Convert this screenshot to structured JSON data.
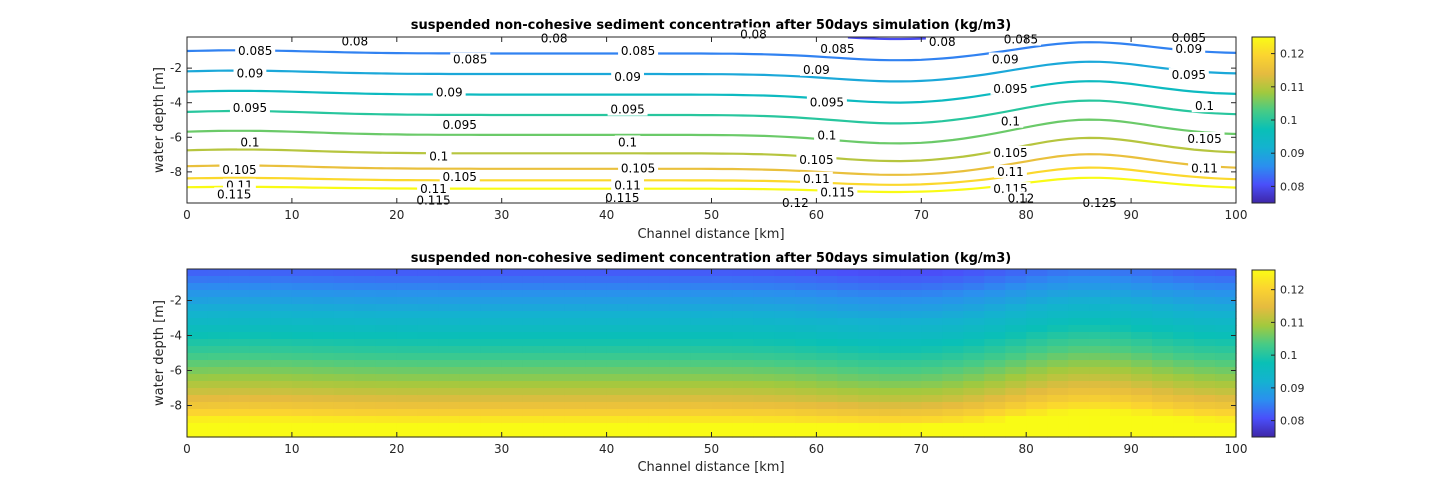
{
  "chart_data": [
    {
      "type": "contour",
      "title": "suspended non-cohesive sediment concentration after 50days simulation (kg/m3)",
      "xlabel": "Channel distance [km]",
      "ylabel": "water depth [m]",
      "xlim": [
        0,
        100
      ],
      "ylim": [
        -9.8,
        -0.2
      ],
      "xticks": [
        "0",
        "10",
        "20",
        "30",
        "40",
        "50",
        "60",
        "70",
        "80",
        "90",
        "100"
      ],
      "yticks": [
        "-2",
        "-4",
        "-6",
        "-8"
      ],
      "colorbar": {
        "min": 0.075,
        "max": 0.125,
        "ticks": [
          "0.08",
          "0.09",
          "0.1",
          "0.11",
          "0.12"
        ]
      },
      "colormap": [
        "#3e26a8",
        "#4a4ffa",
        "#2b8fef",
        "#14b2d0",
        "#09c0b6",
        "#47cb86",
        "#a2c93e",
        "#e5bb3f",
        "#fbd430",
        "#f9fb15"
      ],
      "contour_levels": [
        0.08,
        0.085,
        0.09,
        0.095,
        0.1,
        0.105,
        0.11,
        0.115,
        0.12,
        0.125
      ],
      "contour_labels": [
        {
          "x": 16,
          "y": -0.45,
          "text": "0.08"
        },
        {
          "x": 35,
          "y": -0.3,
          "text": "0.08"
        },
        {
          "x": 54,
          "y": -0.05,
          "text": "0.08"
        },
        {
          "x": 72,
          "y": -0.5,
          "text": "0.08"
        },
        {
          "x": 95.5,
          "y": -0.25,
          "text": "0.085"
        },
        {
          "x": 6.5,
          "y": -1.0,
          "text": "0.085"
        },
        {
          "x": 27,
          "y": -1.5,
          "text": "0.085"
        },
        {
          "x": 43,
          "y": -1.0,
          "text": "0.085"
        },
        {
          "x": 62,
          "y": -0.9,
          "text": "0.085"
        },
        {
          "x": 79.5,
          "y": -0.35,
          "text": "0.085"
        },
        {
          "x": 6,
          "y": -2.3,
          "text": "0.09"
        },
        {
          "x": 25,
          "y": -3.4,
          "text": "0.09"
        },
        {
          "x": 42,
          "y": -2.5,
          "text": "0.09"
        },
        {
          "x": 60,
          "y": -2.1,
          "text": "0.09"
        },
        {
          "x": 78,
          "y": -1.5,
          "text": "0.09"
        },
        {
          "x": 95.5,
          "y": -0.9,
          "text": "0.09"
        },
        {
          "x": 6,
          "y": -4.3,
          "text": "0.095"
        },
        {
          "x": 26,
          "y": -5.3,
          "text": "0.095"
        },
        {
          "x": 42,
          "y": -4.4,
          "text": "0.095"
        },
        {
          "x": 61,
          "y": -4.0,
          "text": "0.095"
        },
        {
          "x": 78.5,
          "y": -3.2,
          "text": "0.095"
        },
        {
          "x": 95.5,
          "y": -2.4,
          "text": "0.095"
        },
        {
          "x": 6,
          "y": -6.3,
          "text": "0.1"
        },
        {
          "x": 24,
          "y": -7.1,
          "text": "0.1"
        },
        {
          "x": 42,
          "y": -6.3,
          "text": "0.1"
        },
        {
          "x": 61,
          "y": -5.9,
          "text": "0.1"
        },
        {
          "x": 78.5,
          "y": -5.1,
          "text": "0.1"
        },
        {
          "x": 97,
          "y": -4.2,
          "text": "0.1"
        },
        {
          "x": 5,
          "y": -7.9,
          "text": "0.105"
        },
        {
          "x": 26,
          "y": -8.3,
          "text": "0.105"
        },
        {
          "x": 43,
          "y": -7.8,
          "text": "0.105"
        },
        {
          "x": 60,
          "y": -7.3,
          "text": "0.105"
        },
        {
          "x": 78.5,
          "y": -6.9,
          "text": "0.105"
        },
        {
          "x": 97,
          "y": -6.1,
          "text": "0.105"
        },
        {
          "x": 5,
          "y": -8.8,
          "text": "0.11"
        },
        {
          "x": 23.5,
          "y": -9.0,
          "text": "0.11"
        },
        {
          "x": 42,
          "y": -8.8,
          "text": "0.11"
        },
        {
          "x": 60,
          "y": -8.4,
          "text": "0.11"
        },
        {
          "x": 78.5,
          "y": -8.0,
          "text": "0.11"
        },
        {
          "x": 97,
          "y": -7.8,
          "text": "0.11"
        },
        {
          "x": 4.5,
          "y": -9.3,
          "text": "0.115"
        },
        {
          "x": 23.5,
          "y": -9.65,
          "text": "0.115"
        },
        {
          "x": 41.5,
          "y": -9.5,
          "text": "0.115"
        },
        {
          "x": 62,
          "y": -9.2,
          "text": "0.115"
        },
        {
          "x": 78.5,
          "y": -9.0,
          "text": "0.115"
        },
        {
          "x": 58,
          "y": -9.8,
          "text": "0.12"
        },
        {
          "x": 79.5,
          "y": -9.55,
          "text": "0.12"
        },
        {
          "x": 87,
          "y": -9.8,
          "text": "0.125"
        }
      ]
    },
    {
      "type": "heatmap",
      "title": "suspended non-cohesive sediment concentration after 50days simulation (kg/m3)",
      "xlabel": "Channel distance [km]",
      "ylabel": "water depth [m]",
      "xlim": [
        0,
        100
      ],
      "ylim": [
        -9.8,
        -0.2
      ],
      "xticks": [
        "0",
        "10",
        "20",
        "30",
        "40",
        "50",
        "60",
        "70",
        "80",
        "90",
        "100"
      ],
      "yticks": [
        "-2",
        "-4",
        "-6",
        "-8"
      ],
      "colorbar": {
        "min": 0.075,
        "max": 0.126,
        "ticks": [
          "0.08",
          "0.09",
          "0.1",
          "0.11",
          "0.12"
        ]
      }
    }
  ]
}
